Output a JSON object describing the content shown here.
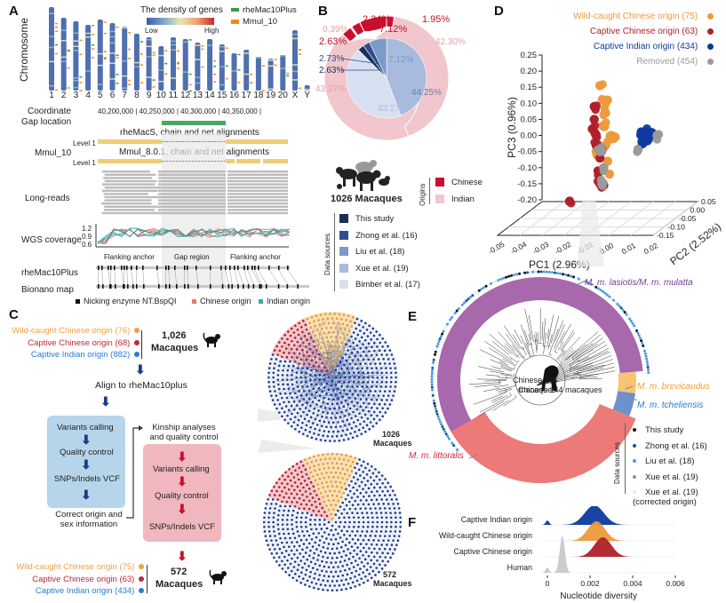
{
  "panels": {
    "A": {
      "letter": "A",
      "y_label": "Chromosome",
      "density_legend": {
        "title": "The density of genes",
        "low": "Low",
        "high": "High"
      },
      "marker_legend": [
        {
          "label": "rheMac10Plus",
          "color": "#3a9a4a"
        },
        {
          "label": "Mmul_10",
          "color": "#f08a1c"
        }
      ],
      "chromosomes": [
        "1",
        "2",
        "3",
        "4",
        "5",
        "6",
        "7",
        "8",
        "9",
        "10",
        "11",
        "12",
        "13",
        "14",
        "15",
        "16",
        "17",
        "18",
        "19",
        "20",
        "X",
        "Y"
      ],
      "tracks": {
        "coordinate_label": "Coordinate",
        "coordinates": "40,200,000 | 40,250,000 | 40,300,000 | 40,350,000 |",
        "gap_label": "Gap location",
        "mmul_label": "Mmul_10",
        "align1_title": "rheMacS, chain and net alignments",
        "align2_title": "Mmul_8.0.1, chain and net alignments",
        "level_label": "Level 1",
        "long_reads_label": "Long-reads",
        "wgs_label": "WGS coverage",
        "wgs_ticks": [
          "1.2",
          "0.9",
          "0.6"
        ],
        "regions": [
          "Flanking anchor",
          "Gap region",
          "Flanking anchor"
        ],
        "rhemac_label": "rheMac10Plus",
        "bionano_label": "Bionano map"
      },
      "bottom_legend": [
        {
          "label": "Nicking enzyme NT.BspQI",
          "color": "#111111"
        },
        {
          "label": "Chinese origin",
          "color": "#e8766d"
        },
        {
          "label": "Indian origin",
          "color": "#2aaeb0"
        }
      ]
    },
    "B": {
      "letter": "B",
      "outer_ring_labels": [
        "2.34%",
        "7.12%",
        "1.95%",
        "0.39%",
        "2.63%",
        "42.30%",
        "43.27%"
      ],
      "inner_labels": [
        "2.73%",
        "2.63%",
        "7.12%",
        "44.25%",
        "43.27%"
      ],
      "center_caption": "1026 Macaques",
      "origins_title": "Origins",
      "origins": [
        {
          "label": "Chinese",
          "color": "#c8102e"
        },
        {
          "label": "Indian",
          "color": "#f1c6cc"
        }
      ],
      "sources_title": "Data sources",
      "sources": [
        {
          "label": "This study",
          "color": "#1b2f55"
        },
        {
          "label": "Zhong et al. (16)",
          "color": "#2d4f8e"
        },
        {
          "label": "Liu et al. (18)",
          "color": "#7d99c9"
        },
        {
          "label": "Xue et al. (19)",
          "color": "#a8bbde"
        },
        {
          "label": "Bimber et al. (17)",
          "color": "#d7e0f0"
        }
      ]
    },
    "C": {
      "letter": "C",
      "top_groups": [
        {
          "label": "Wild-caught Chinese origin (76)",
          "color": "#f0a040"
        },
        {
          "label": "Captive Chinese origin (68)",
          "color": "#c0283a"
        },
        {
          "label": "Captive Indian origin (882)",
          "color": "#2a7bd0"
        }
      ],
      "top_total": "1,026",
      "top_unit": "Macaques",
      "align_step": "Align to rheMac10plus",
      "blue_steps": [
        "Variants calling",
        "Quality control",
        "SNPs/Indels VCF"
      ],
      "correct_info": "Correct origin and sex information",
      "kinship": "Kinship analyses and quality control",
      "red_steps": [
        "Variants calling",
        "Quality control",
        "SNPs/Indels VCF"
      ],
      "bottom_groups": [
        {
          "label": "Wild-caught Chinese origin (75)",
          "color": "#f0a040"
        },
        {
          "label": "Captive Chinese origin (63)",
          "color": "#c0283a"
        },
        {
          "label": "Captive Indian origin (434)",
          "color": "#2a7bd0"
        }
      ],
      "bottom_total": "572",
      "bottom_unit": "Macaques",
      "network_top_caption": [
        "1026",
        "Macaques"
      ],
      "network_bottom_caption": [
        "572",
        "Macaques"
      ]
    },
    "D": {
      "letter": "D",
      "legend": [
        {
          "label": "Wild-caught Chinese origin (75)",
          "color": "#ec9a3c"
        },
        {
          "label": "Captive Chinese origin (63)",
          "color": "#b0202a"
        },
        {
          "label": "Captive Indian origin (434)",
          "color": "#0d3a9e"
        },
        {
          "label": "Removed (454)",
          "color": "#9a9a9a"
        }
      ]
    },
    "E": {
      "letter": "E",
      "center": "Chinese 144 macaques",
      "clades": [
        {
          "label": "M. m. lasiotis/M. m. mulatta",
          "color": "#a868ac"
        },
        {
          "label": "M. m. brevicaudus",
          "color": "#f0a830"
        },
        {
          "label": "M. m. tcheliensis",
          "color": "#2a88d0"
        },
        {
          "label": "M. m. littoralis",
          "color": "#d02840"
        }
      ],
      "sources_title": "Data sources",
      "sources": [
        {
          "label": "This study",
          "color": "#111111"
        },
        {
          "label": "Zhong et al. (16)",
          "color": "#1e4f8e"
        },
        {
          "label": "Liu et al. (18)",
          "color": "#4a9ae0"
        },
        {
          "label": "Xue et al. (19)",
          "color": "#a080c0"
        },
        {
          "label": "Xue et al. (19) (corrected origin)",
          "color": "#e4ecf6"
        }
      ]
    },
    "F": {
      "letter": "F"
    }
  },
  "chart_data": [
    {
      "type": "scatter",
      "panel": "D",
      "title": "",
      "xlabel": "PC1 (2.96%)",
      "ylabel": "PC3 (0.96%)",
      "zlabel": "PC2 (2.52%)",
      "x_ticks": [
        "-0.05",
        "-0.04",
        "-0.03",
        "-0.02",
        "-0.01",
        "0.00",
        "0.01",
        "0.02"
      ],
      "y_ticks": [
        "0.25",
        "0.20",
        "0.15",
        "0.10",
        "0.05",
        "0.00",
        "-0.05",
        "-0.10",
        "-0.15",
        "-0.20"
      ],
      "z_ticks": [
        "0.05",
        "0.00",
        "-0.05",
        "-0.10",
        "-0.15"
      ],
      "xlim": [
        -0.05,
        0.02
      ],
      "ylim": [
        -0.2,
        0.25
      ],
      "zlim": [
        -0.15,
        0.05
      ],
      "series": [
        {
          "name": "Wild-caught Chinese origin (75)",
          "color": "#ec9a3c",
          "points": [
            [
              -0.028,
              0.155
            ],
            [
              -0.026,
              0.11
            ],
            [
              -0.024,
              0.11
            ],
            [
              -0.025,
              0.07
            ],
            [
              -0.026,
              0.03
            ],
            [
              -0.022,
              0.0
            ],
            [
              -0.02,
              -0.005
            ],
            [
              -0.03,
              -0.05
            ],
            [
              -0.024,
              -0.08
            ],
            [
              -0.023,
              -0.12
            ],
            [
              -0.025,
              -0.03
            ],
            [
              -0.021,
              -0.01
            ]
          ]
        },
        {
          "name": "Captive Chinese origin (63)",
          "color": "#b0202a",
          "points": [
            [
              -0.031,
              0.09
            ],
            [
              -0.031,
              0.05
            ],
            [
              -0.032,
              0.02
            ],
            [
              -0.03,
              0.0
            ],
            [
              -0.03,
              -0.03
            ],
            [
              -0.028,
              -0.07
            ],
            [
              -0.029,
              -0.11
            ],
            [
              -0.028,
              -0.15
            ],
            [
              -0.026,
              -0.155
            ],
            [
              -0.044,
              -0.205
            ],
            [
              -0.027,
              -0.04
            ]
          ]
        },
        {
          "name": "Captive Indian origin (434)",
          "color": "#0d3a9e",
          "points": [
            [
              -0.006,
              0.0
            ],
            [
              -0.004,
              0.01
            ],
            [
              -0.002,
              0.0
            ],
            [
              0.0,
              0.005
            ],
            [
              -0.005,
              -0.02
            ],
            [
              -0.003,
              -0.01
            ]
          ]
        },
        {
          "name": "Removed (454)",
          "color": "#9a9a9a",
          "points": [
            [
              -0.028,
              -0.05
            ],
            [
              -0.026,
              -0.1
            ],
            [
              -0.027,
              -0.15
            ],
            [
              -0.008,
              -0.045
            ],
            [
              0.002,
              0.0
            ]
          ]
        }
      ]
    },
    {
      "type": "area",
      "panel": "F",
      "title": "",
      "xlabel": "Nucleotide diversity",
      "ylabel": "",
      "x_ticks": [
        "0",
        "0.002",
        "0.004",
        "0.006"
      ],
      "xlim": [
        -0.0003,
        0.0065
      ],
      "series": [
        {
          "name": "Captive Indian origin",
          "color": "#0d3a9e",
          "peak": 0.0022,
          "sd": 0.00045,
          "secondary_peak": 0.0
        },
        {
          "name": "Wild-caught Chinese origin",
          "color": "#ec9a3c",
          "peak": 0.0023,
          "sd": 0.0004
        },
        {
          "name": "Captive Chinese origin",
          "color": "#b0202a",
          "peak": 0.0026,
          "sd": 0.0004
        },
        {
          "name": "Human",
          "color": "#c8c8c8",
          "peak": 0.0007,
          "sd": 0.00012,
          "secondary_peak": 0.0
        }
      ]
    },
    {
      "type": "pie",
      "panel": "B",
      "title": "",
      "rings": [
        {
          "name": "Origin by source (outer)",
          "slices": [
            {
              "label": "1.95%",
              "value": 1.95,
              "color": "#c8102e"
            },
            {
              "label": "42.30%",
              "value": 42.3,
              "color": "#f1c6cc"
            },
            {
              "label": "43.27%",
              "value": 43.27,
              "color": "#f1c6cc"
            },
            {
              "label": "2.63%",
              "value": 2.63,
              "color": "#c8102e"
            },
            {
              "label": "0.39%",
              "value": 0.39,
              "color": "#f1c6cc"
            },
            {
              "label": "2.34%",
              "value": 2.34,
              "color": "#c8102e"
            },
            {
              "label": "7.12%",
              "value": 7.12,
              "color": "#c8102e"
            }
          ]
        },
        {
          "name": "Data sources (inner)",
          "slices": [
            {
              "label": "44.25%",
              "value": 44.25,
              "color": "#a8bbde"
            },
            {
              "label": "43.27%",
              "value": 43.27,
              "color": "#d7e0f0"
            },
            {
              "label": "2.63%",
              "value": 2.63,
              "color": "#1b2f55"
            },
            {
              "label": "2.73%",
              "value": 2.73,
              "color": "#2d4f8e"
            },
            {
              "label": "7.12%",
              "value": 7.12,
              "color": "#7d99c9"
            }
          ]
        }
      ]
    }
  ]
}
